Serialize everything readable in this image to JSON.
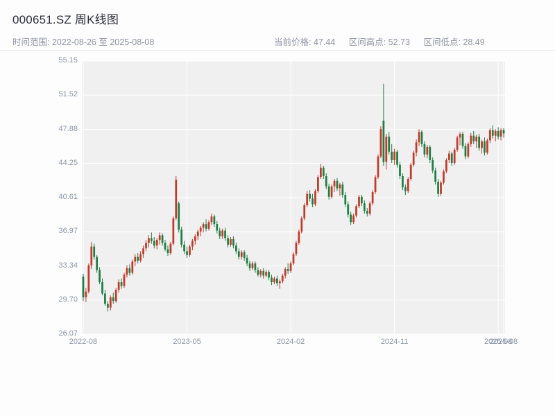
{
  "header": {
    "title": "000651.SZ 周K线图",
    "subtitle_left": "时间范围: 2022-08-26 至 2025-08-08",
    "stats": [
      {
        "text": "当前价格: 47.44"
      },
      {
        "text": "区间高点: 52.73"
      },
      {
        "text": "区间低点: 28.49"
      }
    ]
  },
  "chart_data": {
    "type": "candlestick",
    "title": "000651.SZ 周K线图",
    "symbol": "000651.SZ",
    "interval": "weekly",
    "date_range": {
      "start": "2022-08-26",
      "end": "2025-08-08"
    },
    "current_price": 47.44,
    "range_high": 52.73,
    "range_low": 28.49,
    "ylim": [
      26.07,
      55.15
    ],
    "y_ticks": [
      26.07,
      29.7,
      33.34,
      36.97,
      40.61,
      44.25,
      47.88,
      51.52,
      55.15
    ],
    "x_ticks": [
      {
        "pos": 0.0032,
        "label": "2022-08"
      },
      {
        "pos": 0.2484,
        "label": "2023-05"
      },
      {
        "pos": 0.4935,
        "label": "2024-02"
      },
      {
        "pos": 0.7387,
        "label": "2024-11"
      },
      {
        "pos": 0.9839,
        "label": "2025-08"
      },
      {
        "pos": 0.9968,
        "label": "2025-08"
      }
    ],
    "grid": true,
    "colors": {
      "up": "#c23a2b",
      "down": "#1e7e43",
      "plot_bg": "#f0f0f0",
      "grid": "#ffffff",
      "tick_label": "#8a96a8"
    },
    "candles": [
      [
        32.2,
        32.5,
        29.6,
        30.0
      ],
      [
        30.0,
        31.0,
        29.5,
        30.6
      ],
      [
        30.6,
        33.6,
        30.4,
        33.4
      ],
      [
        33.4,
        35.9,
        33.0,
        35.4
      ],
      [
        35.4,
        35.7,
        34.0,
        34.3
      ],
      [
        34.3,
        34.5,
        32.6,
        32.9
      ],
      [
        32.9,
        33.2,
        31.4,
        31.6
      ],
      [
        31.6,
        32.0,
        30.2,
        30.4
      ],
      [
        30.4,
        30.8,
        29.1,
        29.3
      ],
      [
        29.3,
        29.6,
        28.49,
        28.9
      ],
      [
        28.9,
        30.2,
        28.6,
        30.0
      ],
      [
        30.0,
        30.5,
        29.3,
        29.6
      ],
      [
        29.6,
        31.0,
        29.4,
        30.8
      ],
      [
        30.8,
        31.9,
        30.5,
        31.6
      ],
      [
        31.6,
        32.0,
        30.9,
        31.2
      ],
      [
        31.2,
        32.6,
        31.0,
        32.4
      ],
      [
        32.4,
        33.4,
        32.1,
        33.1
      ],
      [
        33.1,
        33.5,
        32.3,
        32.6
      ],
      [
        32.6,
        34.0,
        32.4,
        33.8
      ],
      [
        33.8,
        34.6,
        33.3,
        34.3
      ],
      [
        34.3,
        34.7,
        33.6,
        33.9
      ],
      [
        33.9,
        34.9,
        33.7,
        34.6
      ],
      [
        34.6,
        35.5,
        34.2,
        35.2
      ],
      [
        35.2,
        36.1,
        34.9,
        35.8
      ],
      [
        35.8,
        36.6,
        35.3,
        36.3
      ],
      [
        36.3,
        36.9,
        35.7,
        36.0
      ],
      [
        36.0,
        36.4,
        35.2,
        35.5
      ],
      [
        35.5,
        36.3,
        35.1,
        36.1
      ],
      [
        36.1,
        36.9,
        35.6,
        36.6
      ],
      [
        36.6,
        36.8,
        35.5,
        35.8
      ],
      [
        35.8,
        36.1,
        34.9,
        35.1
      ],
      [
        35.1,
        35.5,
        34.4,
        34.7
      ],
      [
        34.7,
        35.9,
        34.5,
        35.7
      ],
      [
        35.7,
        38.6,
        35.5,
        38.4
      ],
      [
        38.4,
        42.9,
        38.2,
        42.5
      ],
      [
        40.0,
        40.2,
        36.9,
        37.2
      ],
      [
        37.2,
        37.5,
        35.3,
        35.6
      ],
      [
        35.6,
        36.0,
        34.6,
        34.9
      ],
      [
        34.9,
        35.4,
        34.2,
        34.5
      ],
      [
        34.5,
        35.6,
        34.3,
        35.4
      ],
      [
        35.4,
        36.2,
        35.0,
        36.0
      ],
      [
        36.0,
        36.7,
        35.6,
        36.5
      ],
      [
        36.5,
        37.2,
        36.1,
        37.0
      ],
      [
        37.0,
        37.6,
        36.5,
        37.4
      ],
      [
        37.4,
        38.0,
        36.9,
        37.8
      ],
      [
        37.8,
        38.3,
        37.0,
        37.3
      ],
      [
        37.3,
        38.2,
        37.1,
        38.0
      ],
      [
        38.0,
        38.9,
        37.7,
        38.6
      ],
      [
        38.6,
        38.8,
        37.5,
        37.8
      ],
      [
        37.8,
        38.1,
        36.8,
        37.1
      ],
      [
        37.1,
        37.4,
        36.2,
        36.5
      ],
      [
        36.5,
        37.3,
        36.2,
        37.1
      ],
      [
        37.1,
        37.4,
        36.0,
        36.3
      ],
      [
        36.3,
        36.6,
        35.3,
        35.6
      ],
      [
        35.6,
        36.4,
        35.4,
        36.2
      ],
      [
        36.2,
        36.5,
        35.2,
        35.5
      ],
      [
        35.5,
        35.8,
        34.6,
        34.9
      ],
      [
        34.9,
        35.2,
        34.0,
        34.3
      ],
      [
        34.3,
        35.0,
        34.0,
        34.8
      ],
      [
        34.8,
        35.0,
        33.9,
        34.2
      ],
      [
        34.2,
        34.5,
        33.3,
        33.6
      ],
      [
        33.6,
        33.9,
        32.8,
        33.1
      ],
      [
        33.1,
        33.8,
        32.9,
        33.6
      ],
      [
        33.6,
        33.8,
        32.6,
        32.9
      ],
      [
        32.9,
        33.2,
        32.2,
        32.4
      ],
      [
        32.4,
        33.0,
        32.1,
        32.8
      ],
      [
        32.8,
        33.1,
        32.0,
        32.3
      ],
      [
        32.3,
        32.9,
        32.1,
        32.7
      ],
      [
        32.7,
        32.9,
        31.8,
        32.1
      ],
      [
        32.1,
        32.4,
        31.3,
        31.6
      ],
      [
        31.6,
        32.2,
        31.4,
        32.0
      ],
      [
        32.0,
        32.3,
        31.2,
        31.5
      ],
      [
        31.5,
        31.9,
        30.9,
        31.7
      ],
      [
        31.7,
        32.5,
        31.5,
        32.3
      ],
      [
        32.3,
        33.2,
        32.0,
        33.0
      ],
      [
        33.0,
        33.6,
        32.5,
        32.8
      ],
      [
        32.8,
        33.8,
        32.6,
        33.6
      ],
      [
        33.6,
        34.8,
        33.4,
        34.6
      ],
      [
        34.6,
        36.0,
        34.4,
        35.8
      ],
      [
        35.8,
        37.2,
        35.6,
        37.0
      ],
      [
        37.0,
        38.6,
        36.8,
        38.4
      ],
      [
        38.4,
        40.0,
        38.2,
        39.8
      ],
      [
        39.8,
        41.3,
        39.6,
        41.0
      ],
      [
        41.0,
        41.4,
        40.2,
        40.5
      ],
      [
        40.5,
        41.0,
        39.6,
        39.9
      ],
      [
        39.9,
        41.5,
        39.7,
        41.3
      ],
      [
        41.3,
        43.0,
        41.1,
        42.8
      ],
      [
        42.8,
        44.2,
        42.6,
        43.8
      ],
      [
        43.8,
        44.0,
        42.6,
        42.9
      ],
      [
        42.9,
        43.2,
        41.5,
        41.8
      ],
      [
        41.8,
        42.1,
        40.4,
        40.7
      ],
      [
        40.7,
        42.0,
        40.5,
        41.8
      ],
      [
        41.8,
        42.6,
        41.2,
        42.4
      ],
      [
        42.4,
        42.7,
        41.3,
        41.6
      ],
      [
        41.6,
        42.2,
        40.8,
        42.0
      ],
      [
        42.0,
        42.3,
        40.6,
        40.9
      ],
      [
        40.9,
        41.2,
        39.6,
        39.9
      ],
      [
        39.9,
        40.2,
        38.5,
        38.8
      ],
      [
        38.8,
        39.1,
        37.7,
        38.0
      ],
      [
        38.0,
        38.9,
        37.8,
        38.7
      ],
      [
        38.7,
        39.9,
        38.5,
        39.7
      ],
      [
        39.7,
        40.9,
        39.5,
        40.7
      ],
      [
        40.7,
        40.9,
        39.7,
        40.0
      ],
      [
        40.0,
        40.3,
        38.9,
        39.2
      ],
      [
        39.2,
        39.5,
        38.6,
        38.9
      ],
      [
        38.9,
        40.2,
        38.7,
        40.0
      ],
      [
        40.0,
        41.4,
        39.8,
        41.2
      ],
      [
        41.2,
        43.0,
        41.0,
        42.8
      ],
      [
        42.8,
        45.2,
        42.6,
        45.0
      ],
      [
        45.0,
        48.2,
        44.8,
        47.9
      ],
      [
        48.8,
        52.73,
        44.0,
        44.4
      ],
      [
        44.4,
        47.4,
        43.6,
        47.1
      ],
      [
        47.1,
        47.6,
        45.2,
        45.5
      ],
      [
        45.5,
        46.3,
        44.3,
        44.6
      ],
      [
        44.6,
        45.8,
        44.1,
        45.5
      ],
      [
        45.5,
        45.7,
        43.8,
        44.1
      ],
      [
        44.1,
        44.4,
        42.6,
        42.9
      ],
      [
        42.9,
        43.2,
        41.4,
        41.7
      ],
      [
        41.7,
        42.0,
        40.9,
        41.3
      ],
      [
        41.3,
        42.8,
        41.1,
        42.6
      ],
      [
        42.6,
        44.3,
        42.4,
        44.1
      ],
      [
        44.1,
        45.6,
        43.9,
        45.4
      ],
      [
        45.4,
        46.8,
        45.0,
        46.5
      ],
      [
        46.5,
        47.9,
        46.1,
        47.6
      ],
      [
        47.6,
        47.8,
        46.0,
        46.3
      ],
      [
        46.3,
        46.6,
        44.9,
        45.2
      ],
      [
        45.2,
        46.2,
        44.8,
        46.0
      ],
      [
        46.0,
        46.2,
        44.3,
        44.6
      ],
      [
        44.6,
        44.9,
        43.2,
        43.5
      ],
      [
        43.5,
        43.8,
        42.0,
        42.3
      ],
      [
        42.3,
        42.6,
        40.7,
        41.0
      ],
      [
        41.0,
        42.4,
        40.8,
        42.2
      ],
      [
        42.2,
        43.6,
        42.0,
        43.4
      ],
      [
        43.4,
        44.8,
        43.2,
        44.6
      ],
      [
        44.6,
        45.6,
        44.3,
        45.3
      ],
      [
        45.3,
        45.5,
        44.0,
        44.3
      ],
      [
        44.3,
        45.9,
        44.1,
        45.7
      ],
      [
        45.7,
        47.2,
        45.5,
        47.0
      ],
      [
        47.0,
        47.6,
        46.2,
        47.4
      ],
      [
        47.4,
        47.6,
        45.8,
        46.1
      ],
      [
        46.1,
        46.4,
        44.7,
        45.0
      ],
      [
        45.0,
        46.5,
        44.8,
        46.3
      ],
      [
        46.3,
        47.5,
        46.0,
        47.2
      ],
      [
        47.2,
        47.7,
        46.3,
        46.6
      ],
      [
        46.6,
        47.3,
        45.9,
        47.1
      ],
      [
        47.1,
        47.4,
        45.6,
        45.9
      ],
      [
        45.9,
        46.8,
        45.3,
        46.6
      ],
      [
        46.6,
        47.0,
        45.1,
        45.4
      ],
      [
        45.4,
        46.9,
        45.2,
        46.7
      ],
      [
        46.7,
        48.0,
        46.4,
        47.8
      ],
      [
        47.8,
        48.3,
        46.9,
        47.2
      ],
      [
        47.2,
        47.9,
        46.6,
        47.7
      ],
      [
        47.7,
        48.1,
        46.8,
        47.1
      ],
      [
        47.1,
        48.0,
        46.7,
        47.8
      ],
      [
        47.8,
        48.0,
        47.0,
        47.44
      ]
    ]
  }
}
